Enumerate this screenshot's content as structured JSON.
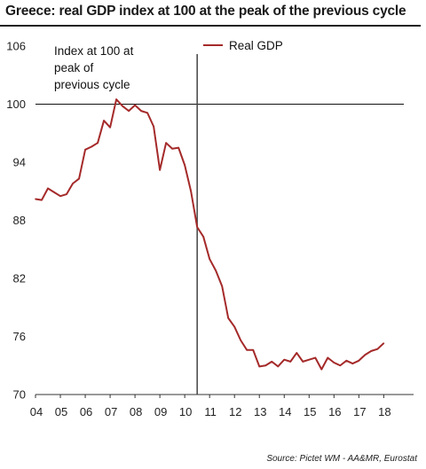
{
  "title": "Greece: real GDP index at 100 at the peak of the previous cycle",
  "source": "Source: Pictet WM - AA&MR, Eurostat",
  "colors": {
    "series": "#a52a2a",
    "axis": "#333333",
    "reference": "#111111"
  },
  "chart_data": {
    "type": "line",
    "title": "Greece: real GDP index at 100 at the peak of the previous cycle",
    "xlabel": "",
    "ylabel": "",
    "ylim": [
      70,
      106
    ],
    "xlim": [
      2004,
      2019.2
    ],
    "yticks": [
      70,
      76,
      82,
      88,
      94,
      100,
      106
    ],
    "ytick_labels": [
      "70",
      "76",
      "82",
      "88",
      "94",
      "100",
      "106"
    ],
    "xticks": [
      2004,
      2005,
      2006,
      2007,
      2008,
      2009,
      2010,
      2011,
      2012,
      2013,
      2014,
      2015,
      2016,
      2017,
      2018
    ],
    "xtick_labels": [
      "04",
      "05",
      "06",
      "07",
      "08",
      "09",
      "10",
      "11",
      "12",
      "13",
      "14",
      "15",
      "16",
      "17",
      "18"
    ],
    "grid": false,
    "legend_position": "top-center",
    "reference_line": {
      "y": 100
    },
    "cycle_peak_marker": {
      "x": 2010.5
    },
    "annotation": [
      "Index at 100 at",
      "peak of",
      "previous cycle"
    ],
    "series": [
      {
        "name": "Real GDP",
        "x": [
          2004.0,
          2004.25,
          2004.5,
          2004.75,
          2005.0,
          2005.25,
          2005.5,
          2005.75,
          2006.0,
          2006.25,
          2006.5,
          2006.75,
          2007.0,
          2007.25,
          2007.5,
          2007.75,
          2008.0,
          2008.25,
          2008.5,
          2008.75,
          2009.0,
          2009.25,
          2009.5,
          2009.75,
          2010.0,
          2010.25,
          2010.5,
          2010.75,
          2011.0,
          2011.25,
          2011.5,
          2011.75,
          2012.0,
          2012.25,
          2012.5,
          2012.75,
          2013.0,
          2013.25,
          2013.5,
          2013.75,
          2014.0,
          2014.25,
          2014.5,
          2014.75,
          2015.0,
          2015.25,
          2015.5,
          2015.75,
          2016.0,
          2016.25,
          2016.5,
          2016.75,
          2017.0,
          2017.25,
          2017.5,
          2017.75,
          2018.0
        ],
        "values": [
          90.2,
          90.1,
          91.3,
          90.9,
          90.5,
          90.7,
          91.8,
          92.3,
          95.3,
          95.6,
          96.0,
          98.3,
          97.6,
          100.5,
          99.8,
          99.3,
          99.9,
          99.3,
          99.1,
          97.7,
          93.2,
          96.0,
          95.4,
          95.5,
          93.7,
          91.0,
          87.3,
          86.3,
          84.0,
          82.8,
          81.2,
          77.9,
          77.0,
          75.6,
          74.6,
          74.6,
          72.9,
          73.0,
          73.4,
          72.9,
          73.6,
          73.4,
          74.3,
          73.4,
          73.6,
          73.8,
          72.6,
          73.8,
          73.3,
          73.0,
          73.5,
          73.2,
          73.5,
          74.1,
          74.5,
          74.7,
          75.3
        ]
      }
    ]
  }
}
